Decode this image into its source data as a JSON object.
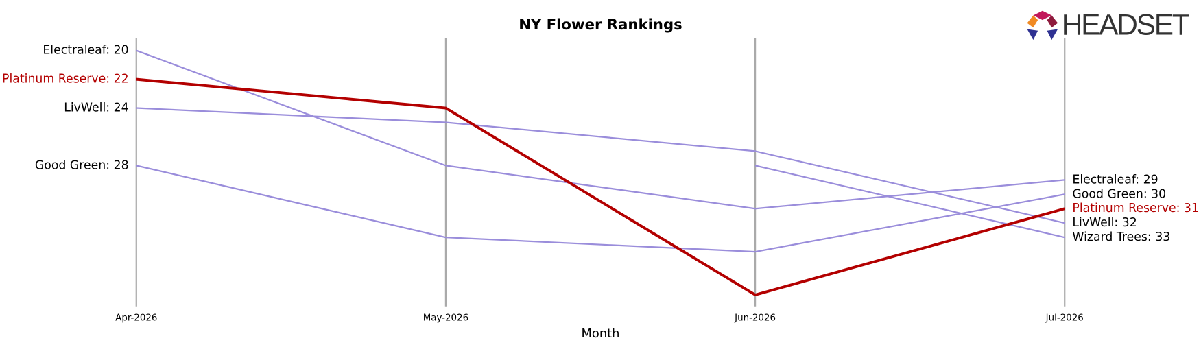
{
  "chart_data": {
    "type": "line",
    "title": "NY Flower Rankings",
    "x_label": "Month",
    "logo_text": "HEADSET",
    "categories": [
      "Apr-2026",
      "May-2026",
      "Jun-2026",
      "Jul-2026"
    ],
    "ylim": [
      37.8,
      19.15
    ],
    "grid": true,
    "series": [
      {
        "name": "Electraleaf",
        "color": "#9a8ddb",
        "label_color": "#000000",
        "highlight": false,
        "values": [
          20,
          28,
          31,
          29
        ],
        "value_labels": [
          "Electraleaf: 20",
          null,
          null,
          "Electraleaf: 29"
        ]
      },
      {
        "name": "LivWell",
        "color": "#9a8ddb",
        "label_color": "#000000",
        "highlight": false,
        "values": [
          24,
          25,
          27,
          32
        ],
        "value_labels": [
          "LivWell: 24",
          null,
          null,
          "LivWell: 32"
        ]
      },
      {
        "name": "Good Green",
        "color": "#9a8ddb",
        "label_color": "#000000",
        "highlight": false,
        "values": [
          28,
          33,
          34,
          30
        ],
        "value_labels": [
          "Good Green: 28",
          null,
          null,
          "Good Green: 30"
        ]
      },
      {
        "name": "Wizard Trees",
        "color": "#9a8ddb",
        "label_color": "#000000",
        "highlight": false,
        "values": [
          null,
          null,
          28,
          33
        ],
        "value_labels": [
          null,
          null,
          null,
          "Wizard Trees: 33"
        ]
      },
      {
        "name": "Platinum Reserve",
        "color": "#b30000",
        "label_color": "#b30000",
        "highlight": true,
        "values": [
          22,
          24,
          37,
          31
        ],
        "value_labels": [
          "Platinum Reserve: 22",
          null,
          null,
          "Platinum Reserve: 31"
        ]
      }
    ]
  }
}
